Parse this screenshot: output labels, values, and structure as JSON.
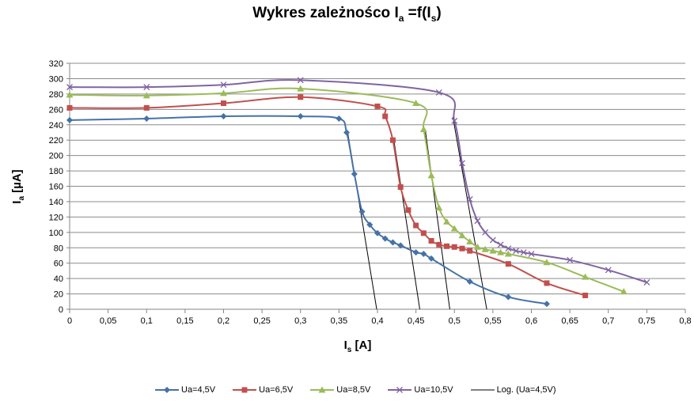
{
  "chart_data": {
    "type": "line",
    "title": {
      "prefix": "Wykres zależnośco I",
      "sub1": "a",
      "mid": " =f(I",
      "sub2": "s",
      "suffix": ")"
    },
    "xlabel": {
      "main": "I",
      "sub": "s",
      "rest": " [A]"
    },
    "ylabel": {
      "main": "I",
      "sub": "a",
      "rest": " [µA]"
    },
    "xlim": [
      0,
      0.8
    ],
    "ylim": [
      0,
      320
    ],
    "x_ticks": [
      "0",
      "0,05",
      "0,1",
      "0,15",
      "0,2",
      "0,25",
      "0,3",
      "0,35",
      "0,4",
      "0,45",
      "0,5",
      "0,55",
      "0,6",
      "0,65",
      "0,7",
      "0,75",
      "0,8"
    ],
    "y_ticks": [
      "0",
      "20",
      "40",
      "60",
      "80",
      "100",
      "120",
      "140",
      "160",
      "180",
      "200",
      "220",
      "240",
      "260",
      "280",
      "300",
      "320"
    ],
    "grid": "horizontal",
    "legend_position": "bottom",
    "series": [
      {
        "name": "Ua=4,5V",
        "color": "#4572a7",
        "marker": "diamond",
        "points": [
          [
            0,
            246
          ],
          [
            0.1,
            248
          ],
          [
            0.2,
            251
          ],
          [
            0.3,
            251
          ],
          [
            0.35,
            248
          ],
          [
            0.36,
            230
          ],
          [
            0.37,
            176
          ],
          [
            0.38,
            127
          ],
          [
            0.39,
            110
          ],
          [
            0.4,
            99
          ],
          [
            0.41,
            92
          ],
          [
            0.42,
            87
          ],
          [
            0.43,
            83
          ],
          [
            0.45,
            74
          ],
          [
            0.46,
            72
          ],
          [
            0.47,
            66
          ],
          [
            0.52,
            36
          ],
          [
            0.57,
            16
          ],
          [
            0.62,
            7
          ]
        ]
      },
      {
        "name": "Ua=6,5V",
        "color": "#c0504d",
        "marker": "square",
        "points": [
          [
            0,
            262
          ],
          [
            0.1,
            262
          ],
          [
            0.2,
            268
          ],
          [
            0.3,
            276
          ],
          [
            0.4,
            264
          ],
          [
            0.41,
            251
          ],
          [
            0.42,
            220
          ],
          [
            0.43,
            159
          ],
          [
            0.44,
            129
          ],
          [
            0.45,
            109
          ],
          [
            0.46,
            99
          ],
          [
            0.47,
            89
          ],
          [
            0.48,
            84
          ],
          [
            0.49,
            82
          ],
          [
            0.5,
            81
          ],
          [
            0.51,
            79
          ],
          [
            0.52,
            76
          ],
          [
            0.57,
            59
          ],
          [
            0.62,
            34
          ],
          [
            0.67,
            18
          ]
        ]
      },
      {
        "name": "Ua=8,5V",
        "color": "#9bbb59",
        "marker": "triangle",
        "points": [
          [
            0,
            279
          ],
          [
            0.1,
            278
          ],
          [
            0.2,
            281
          ],
          [
            0.3,
            287
          ],
          [
            0.45,
            268
          ],
          [
            0.46,
            234
          ],
          [
            0.47,
            174
          ],
          [
            0.48,
            132
          ],
          [
            0.49,
            114
          ],
          [
            0.5,
            105
          ],
          [
            0.51,
            96
          ],
          [
            0.52,
            88
          ],
          [
            0.53,
            81
          ],
          [
            0.54,
            78
          ],
          [
            0.55,
            76
          ],
          [
            0.56,
            74
          ],
          [
            0.57,
            72
          ],
          [
            0.62,
            61
          ],
          [
            0.67,
            42
          ],
          [
            0.72,
            23
          ]
        ]
      },
      {
        "name": "Ua=10,5V",
        "color": "#8064a2",
        "marker": "x",
        "points": [
          [
            0,
            289
          ],
          [
            0.1,
            289
          ],
          [
            0.2,
            292
          ],
          [
            0.3,
            298
          ],
          [
            0.48,
            282
          ],
          [
            0.5,
            245
          ],
          [
            0.51,
            190
          ],
          [
            0.52,
            143
          ],
          [
            0.53,
            115
          ],
          [
            0.54,
            100
          ],
          [
            0.55,
            90
          ],
          [
            0.56,
            84
          ],
          [
            0.57,
            79
          ],
          [
            0.58,
            76
          ],
          [
            0.59,
            74
          ],
          [
            0.6,
            72
          ],
          [
            0.65,
            64
          ],
          [
            0.7,
            51
          ],
          [
            0.75,
            35
          ]
        ]
      },
      {
        "name": "Log. (Ua=4,5V)",
        "color": "#000000",
        "marker": "none",
        "lines": [
          [
            [
              0.361,
              232
            ],
            [
              0.399,
              0
            ]
          ],
          [
            [
              0.421,
              222
            ],
            [
              0.455,
              0
            ]
          ],
          [
            [
              0.462,
              234
            ],
            [
              0.494,
              0
            ]
          ],
          [
            [
              0.498,
              250
            ],
            [
              0.542,
              0
            ]
          ]
        ]
      }
    ]
  }
}
